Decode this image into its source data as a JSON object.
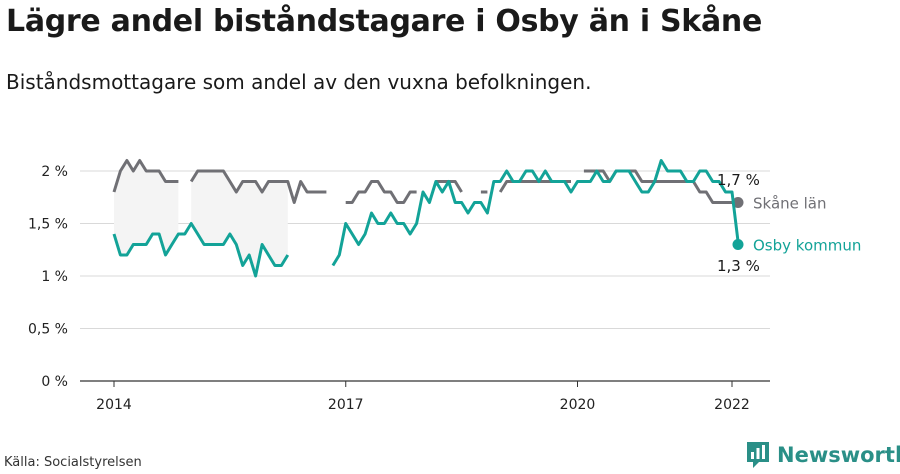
{
  "header": {
    "title": "Lägre andel biståndstagare i Osby än i Skåne",
    "subtitle": "Biståndsmottagare som andel av den vuxna befolkningen."
  },
  "footer": {
    "source": "Källa: Socialstyrelsen",
    "brand": "Newsworthy"
  },
  "colors": {
    "skane": "#707075",
    "osby": "#13a398",
    "gap_fill": "#f4f4f4",
    "grid": "#d9d9d9",
    "brand": "#2a8f87"
  },
  "icons": [
    "newsworthy-logo-icon"
  ],
  "chart_data": {
    "type": "line",
    "ylim": [
      0,
      2.1
    ],
    "y_ticks": [
      0,
      0.5,
      1,
      1.5,
      2
    ],
    "y_tick_labels": [
      "0 %",
      "0,5 %",
      "1 %",
      "1,5 %",
      "2 %"
    ],
    "x_ticks": [
      2014,
      2017,
      2020,
      2022
    ],
    "x_tick_labels": [
      "2014",
      "2017",
      "2020",
      "2022"
    ],
    "xlim": [
      2013.6,
      2022.3
    ],
    "grid": true,
    "series": [
      {
        "name": "Skåne län",
        "end_label": "1,7 %",
        "x_start": 2014.0,
        "x_step": 0.08333,
        "values": [
          1.8,
          2.0,
          2.1,
          2.0,
          2.1,
          2.0,
          2.0,
          2.0,
          1.9,
          1.9,
          1.9,
          null,
          1.9,
          2.0,
          2.0,
          2.0,
          2.0,
          2.0,
          1.9,
          1.8,
          1.9,
          1.9,
          1.9,
          1.8,
          1.9,
          1.9,
          1.9,
          1.9,
          1.7,
          1.9,
          1.8,
          1.8,
          1.8,
          1.8,
          null,
          null,
          1.7,
          1.7,
          1.8,
          1.8,
          1.9,
          1.9,
          1.8,
          1.8,
          1.7,
          1.7,
          1.8,
          1.8,
          null,
          null,
          1.9,
          1.9,
          1.9,
          1.9,
          1.8,
          null,
          null,
          1.8,
          1.8,
          null,
          1.8,
          1.9,
          1.9,
          1.9,
          1.9,
          1.9,
          1.9,
          1.9,
          1.9,
          1.9,
          1.9,
          1.9,
          null,
          2.0,
          2.0,
          2.0,
          2.0,
          1.9,
          2.0,
          2.0,
          2.0,
          2.0,
          1.9,
          1.9,
          1.9,
          1.9,
          1.9,
          1.9,
          1.9,
          1.9,
          1.9,
          1.8,
          1.8,
          1.7,
          1.7,
          1.7,
          1.7,
          1.7
        ]
      },
      {
        "name": "Osby kommun",
        "end_label": "1,3 %",
        "x_start": 2014.0,
        "x_step": 0.08333,
        "values": [
          1.4,
          1.2,
          1.2,
          1.3,
          1.3,
          1.3,
          1.4,
          1.4,
          1.2,
          1.3,
          1.4,
          1.4,
          1.5,
          1.4,
          1.3,
          1.3,
          1.3,
          1.3,
          1.4,
          1.3,
          1.1,
          1.2,
          1.0,
          1.3,
          1.2,
          1.1,
          1.1,
          1.2,
          null,
          null,
          null,
          null,
          null,
          null,
          1.1,
          1.2,
          1.5,
          1.4,
          1.3,
          1.4,
          1.6,
          1.5,
          1.5,
          1.6,
          1.5,
          1.5,
          1.4,
          1.5,
          1.8,
          1.7,
          1.9,
          1.8,
          1.9,
          1.7,
          1.7,
          1.6,
          1.7,
          1.7,
          1.6,
          1.9,
          1.9,
          2.0,
          1.9,
          1.9,
          2.0,
          2.0,
          1.9,
          2.0,
          1.9,
          1.9,
          1.9,
          1.8,
          1.9,
          1.9,
          1.9,
          2.0,
          1.9,
          1.9,
          2.0,
          2.0,
          2.0,
          1.9,
          1.8,
          1.8,
          1.9,
          2.1,
          2.0,
          2.0,
          2.0,
          1.9,
          1.9,
          2.0,
          2.0,
          1.9,
          1.9,
          1.8,
          1.8,
          1.3
        ]
      }
    ]
  }
}
